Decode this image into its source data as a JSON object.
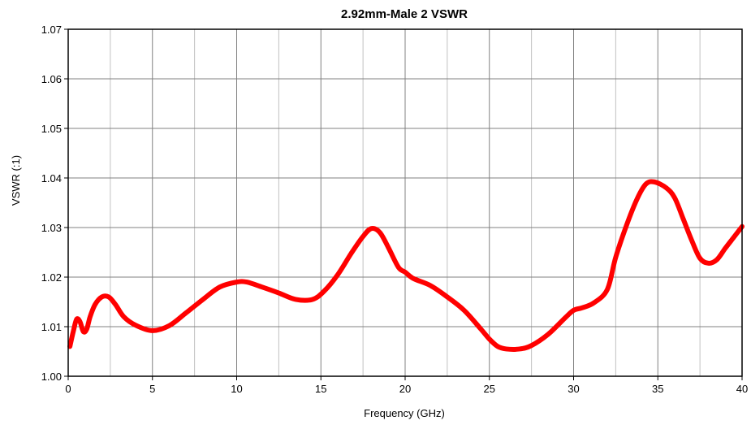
{
  "chart_data": {
    "type": "line",
    "title": "2.92mm-Male 2 VSWR",
    "xlabel": "Frequency (GHz)",
    "ylabel": "VSWR (:1)",
    "xlim": [
      0,
      40
    ],
    "ylim": [
      1.0,
      1.07
    ],
    "x_ticks": [
      "0",
      "5",
      "10",
      "15",
      "20",
      "25",
      "30",
      "35",
      "40"
    ],
    "y_ticks": [
      "1.00",
      "1.01",
      "1.02",
      "1.03",
      "1.04",
      "1.05",
      "1.06",
      "1.07"
    ],
    "x_minor_step": 2.5,
    "grid": true,
    "legend": "none",
    "series": [
      {
        "color": "#ff0000",
        "x": [
          0.1,
          0.3,
          0.5,
          0.7,
          0.9,
          1.1,
          1.3,
          1.6,
          2.0,
          2.4,
          2.8,
          3.3,
          4.0,
          5.0,
          6.0,
          7.0,
          8.0,
          9.0,
          10.0,
          10.6,
          11.5,
          12.5,
          13.5,
          14.5,
          15.2,
          16.0,
          16.8,
          17.5,
          18.0,
          18.5,
          19.0,
          19.6,
          20.0,
          20.5,
          21.5,
          22.5,
          23.5,
          24.5,
          25.0,
          25.5,
          26.0,
          26.8,
          27.5,
          28.5,
          29.5,
          30.0,
          30.5,
          31.2,
          32.0,
          32.5,
          33.2,
          33.8,
          34.3,
          34.8,
          35.5,
          36.0,
          36.5,
          37.0,
          37.5,
          38.0,
          38.5,
          39.0,
          39.5,
          40.0
        ],
        "y": [
          1.006,
          1.009,
          1.0115,
          1.011,
          1.009,
          1.0095,
          1.012,
          1.0145,
          1.016,
          1.016,
          1.0145,
          1.012,
          1.0103,
          1.0092,
          1.0102,
          1.0128,
          1.0155,
          1.018,
          1.019,
          1.019,
          1.018,
          1.0168,
          1.0155,
          1.0155,
          1.0172,
          1.0205,
          1.0248,
          1.0282,
          1.0298,
          1.029,
          1.026,
          1.022,
          1.021,
          1.0197,
          1.0183,
          1.016,
          1.0133,
          1.0095,
          1.0075,
          1.006,
          1.0055,
          1.0055,
          1.0062,
          1.0085,
          1.0118,
          1.0133,
          1.0138,
          1.0148,
          1.0175,
          1.024,
          1.031,
          1.036,
          1.0388,
          1.0392,
          1.038,
          1.036,
          1.0318,
          1.0275,
          1.0238,
          1.0228,
          1.0235,
          1.0258,
          1.028,
          1.0302
        ]
      }
    ]
  }
}
